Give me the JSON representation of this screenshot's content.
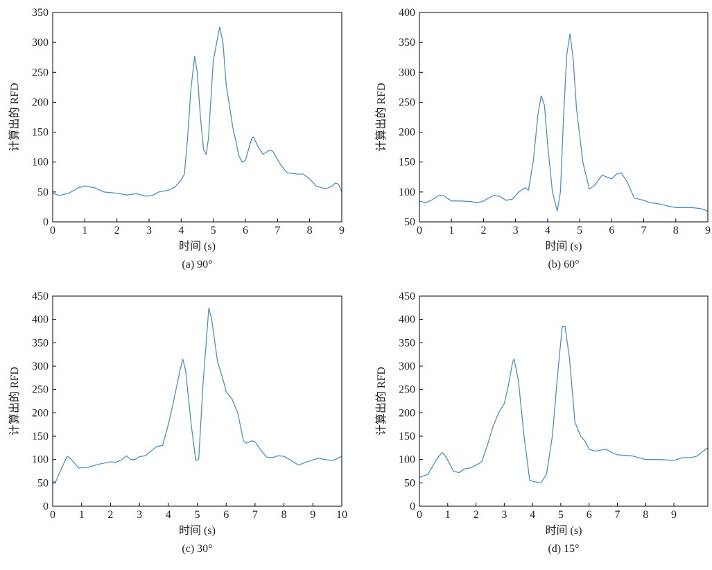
{
  "chart_data": [
    {
      "type": "line",
      "title": "(a) 90°",
      "xlabel": "时间 (s)",
      "ylabel": "计算出的 RFD",
      "color": "#4a90c8",
      "x": [
        0,
        0.2,
        0.5,
        0.8,
        1.0,
        1.3,
        1.6,
        2.0,
        2.3,
        2.6,
        2.9,
        3.1,
        3.3,
        3.6,
        3.8,
        4.0,
        4.1,
        4.2,
        4.3,
        4.42,
        4.5,
        4.6,
        4.7,
        4.78,
        4.85,
        5.0,
        5.2,
        5.3,
        5.4,
        5.6,
        5.8,
        5.9,
        6.0,
        6.2,
        6.25,
        6.4,
        6.55,
        6.75,
        6.85,
        7.1,
        7.3,
        7.6,
        7.8,
        8.0,
        8.2,
        8.5,
        8.7,
        8.8,
        8.9,
        9.0
      ],
      "values": [
        48,
        44,
        48,
        57,
        60,
        57,
        50,
        48,
        45,
        47,
        43,
        44,
        50,
        53,
        58,
        70,
        80,
        140,
        220,
        277,
        250,
        175,
        120,
        113,
        140,
        270,
        326,
        300,
        230,
        160,
        110,
        100,
        103,
        140,
        142,
        125,
        113,
        120,
        118,
        95,
        82,
        80,
        80,
        72,
        60,
        55,
        60,
        65,
        63,
        50
      ],
      "xlim": [
        0,
        9
      ],
      "xticks": [
        0,
        1,
        2,
        3,
        4,
        5,
        6,
        7,
        8,
        9
      ],
      "ylim": [
        0,
        350
      ],
      "yticks": [
        0,
        50,
        100,
        150,
        200,
        250,
        300,
        350
      ]
    },
    {
      "type": "line",
      "title": "(b) 60°",
      "xlabel": "时间 (s)",
      "ylabel": "计算出的 RFD",
      "color": "#4a90c8",
      "x": [
        0,
        0.2,
        0.4,
        0.6,
        0.75,
        1.0,
        1.3,
        1.6,
        1.8,
        2.0,
        2.3,
        2.5,
        2.7,
        2.9,
        3.1,
        3.3,
        3.4,
        3.55,
        3.7,
        3.8,
        3.9,
        4.0,
        4.15,
        4.3,
        4.4,
        4.5,
        4.6,
        4.7,
        4.8,
        4.9,
        5.1,
        5.3,
        5.45,
        5.7,
        5.9,
        6.0,
        6.15,
        6.3,
        6.5,
        6.7,
        7.0,
        7.2,
        7.5,
        7.8,
        8.0,
        8.5,
        8.8,
        9.0
      ],
      "values": [
        85,
        82,
        87,
        94,
        94,
        85,
        85,
        84,
        82,
        85,
        94,
        93,
        86,
        88,
        100,
        107,
        103,
        150,
        230,
        261,
        245,
        180,
        100,
        68,
        100,
        230,
        330,
        365,
        320,
        240,
        150,
        105,
        110,
        128,
        124,
        122,
        130,
        132,
        115,
        90,
        86,
        82,
        80,
        76,
        74,
        74,
        72,
        68
      ],
      "xlim": [
        0,
        9
      ],
      "xticks": [
        0,
        1,
        2,
        3,
        4,
        5,
        6,
        7,
        8,
        9
      ],
      "ylim": [
        50,
        400
      ],
      "yticks": [
        50,
        100,
        150,
        200,
        250,
        300,
        350,
        400
      ]
    },
    {
      "type": "line",
      "title": "(c) 30°",
      "xlabel": "时间 (s)",
      "ylabel": "计算出的 RFD",
      "color": "#4a90c8",
      "x": [
        0,
        0.1,
        0.3,
        0.5,
        0.6,
        0.9,
        1.2,
        1.6,
        2.0,
        2.2,
        2.4,
        2.55,
        2.7,
        2.85,
        3.0,
        3.2,
        3.4,
        3.6,
        3.8,
        4.0,
        4.2,
        4.4,
        4.5,
        4.6,
        4.8,
        4.95,
        5.05,
        5.2,
        5.4,
        5.5,
        5.7,
        5.9,
        6.0,
        6.2,
        6.4,
        6.6,
        6.7,
        6.9,
        7.0,
        7.2,
        7.4,
        7.6,
        7.8,
        8.0,
        8.2,
        8.5,
        8.8,
        9.2,
        9.4,
        9.7,
        10.0
      ],
      "values": [
        52,
        52,
        80,
        107,
        103,
        82,
        83,
        90,
        95,
        94,
        100,
        108,
        100,
        100,
        106,
        108,
        118,
        128,
        130,
        175,
        230,
        290,
        315,
        290,
        170,
        98,
        100,
        260,
        425,
        400,
        310,
        270,
        245,
        230,
        200,
        140,
        135,
        140,
        138,
        120,
        105,
        104,
        108,
        107,
        100,
        88,
        95,
        103,
        100,
        98,
        107
      ],
      "xlim": [
        0,
        10
      ],
      "xticks": [
        0,
        1,
        2,
        3,
        4,
        5,
        6,
        7,
        8,
        9,
        10
      ],
      "ylim": [
        0,
        450
      ],
      "yticks": [
        0,
        50,
        100,
        150,
        200,
        250,
        300,
        350,
        400,
        450
      ]
    },
    {
      "type": "line",
      "title": "(d) 15°",
      "xlabel": "时间 (s)",
      "ylabel": "计算出的 RFD",
      "color": "#4a90c8",
      "x": [
        0,
        0.3,
        0.6,
        0.8,
        0.95,
        1.2,
        1.4,
        1.6,
        1.8,
        2.0,
        2.2,
        2.4,
        2.6,
        2.8,
        3.0,
        3.15,
        3.3,
        3.35,
        3.5,
        3.7,
        3.9,
        4.1,
        4.3,
        4.5,
        4.7,
        4.9,
        5.05,
        5.15,
        5.3,
        5.5,
        5.7,
        5.85,
        6.0,
        6.2,
        6.6,
        6.8,
        7.0,
        7.5,
        8.0,
        8.5,
        9.0,
        9.3,
        9.6,
        9.8,
        10.2
      ],
      "values": [
        62,
        68,
        100,
        115,
        105,
        75,
        72,
        80,
        82,
        88,
        95,
        130,
        170,
        200,
        220,
        260,
        310,
        315,
        270,
        150,
        55,
        52,
        50,
        70,
        150,
        290,
        385,
        385,
        320,
        180,
        150,
        140,
        122,
        118,
        122,
        115,
        110,
        108,
        100,
        100,
        98,
        104,
        104,
        107,
        125
      ],
      "xlim": [
        0,
        10.2
      ],
      "xticks": [
        0,
        1,
        2,
        3,
        4,
        5,
        6,
        7,
        8,
        9
      ],
      "ylim": [
        0,
        450
      ],
      "yticks": [
        0,
        50,
        100,
        150,
        200,
        250,
        300,
        350,
        400,
        450
      ]
    }
  ]
}
